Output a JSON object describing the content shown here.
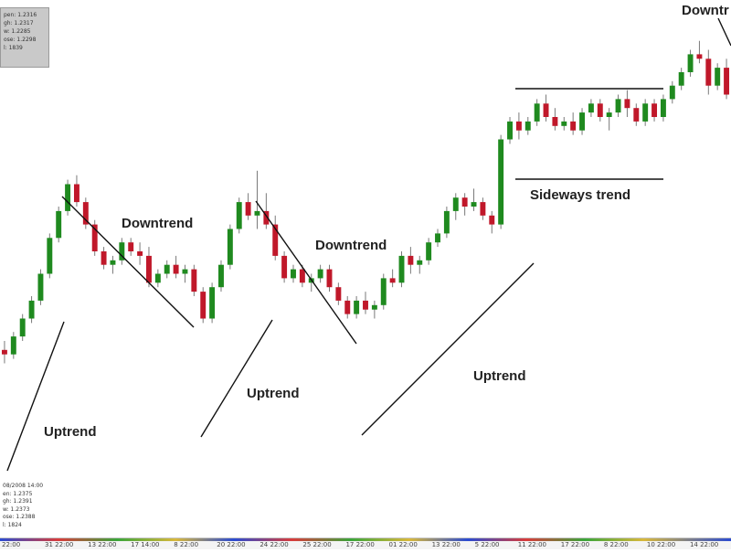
{
  "ohlc_top": {
    "lines": [
      "pen: 1.2316",
      "gh: 1.2317",
      "w: 1.2285",
      "ose: 1.2298",
      "l: 1839"
    ]
  },
  "ohlc_bottom": {
    "lines": [
      "08/2008 14:00",
      "en: 1.2375",
      "gh: 1.2391",
      "w: 1.2373",
      "ose: 1.2388",
      "l: 1824"
    ]
  },
  "annotations": {
    "uptrend_1": "Uptrend",
    "downtrend_1": "Downtrend",
    "uptrend_2": "Uptrend",
    "downtrend_2": "Downtrend",
    "uptrend_3": "Uptrend",
    "sideways": "Sideways trend",
    "downtrend_3": "Downtr"
  },
  "time_axis": {
    "ticks": [
      "22:00",
      "31 22:00",
      "13 22:00",
      "17 14:00",
      "8 22:00",
      "20 22:00",
      "24 22:00",
      "25 22:00",
      "17 22:00",
      "01 22:00",
      "13 22:00",
      "5 22:00",
      "11 22:00",
      "17 22:00",
      "8 22:00",
      "10 22:00",
      "14 22:00"
    ]
  },
  "colors": {
    "up_candle": "#1f8a1f",
    "down_candle": "#c0182a",
    "wick": "#7a7a7a",
    "trendline": "#111111"
  },
  "chart_data": {
    "type": "candlestick",
    "title": "",
    "xlabel": "",
    "ylabel": "",
    "ylim": [
      0,
      100
    ],
    "series": [
      {
        "values": [
          [
            28,
            30,
            25,
            27
          ],
          [
            27,
            32,
            26,
            31
          ],
          [
            31,
            36,
            30,
            35
          ],
          [
            35,
            40,
            34,
            39
          ],
          [
            39,
            46,
            38,
            45
          ],
          [
            45,
            54,
            44,
            53
          ],
          [
            53,
            60,
            52,
            59
          ],
          [
            59,
            66,
            58,
            65
          ],
          [
            65,
            67,
            60,
            61
          ],
          [
            61,
            62,
            55,
            56
          ],
          [
            56,
            57,
            49,
            50
          ],
          [
            50,
            51,
            46,
            47
          ],
          [
            47,
            49,
            45,
            48
          ],
          [
            48,
            53,
            47,
            52
          ],
          [
            52,
            53,
            49,
            50
          ],
          [
            50,
            52,
            47,
            49
          ],
          [
            49,
            51,
            42,
            43
          ],
          [
            43,
            46,
            42,
            45
          ],
          [
            45,
            48,
            44,
            47
          ],
          [
            47,
            49,
            44,
            45
          ],
          [
            45,
            47,
            43,
            46
          ],
          [
            46,
            47,
            40,
            41
          ],
          [
            41,
            42,
            34,
            35
          ],
          [
            35,
            43,
            34,
            42
          ],
          [
            42,
            48,
            41,
            47
          ],
          [
            47,
            56,
            46,
            55
          ],
          [
            55,
            62,
            54,
            61
          ],
          [
            61,
            63,
            57,
            58
          ],
          [
            58,
            68,
            55,
            59
          ],
          [
            59,
            63,
            55,
            56
          ],
          [
            56,
            58,
            48,
            49
          ],
          [
            49,
            50,
            43,
            44
          ],
          [
            44,
            47,
            43,
            46
          ],
          [
            46,
            47,
            42,
            43
          ],
          [
            43,
            45,
            41,
            44
          ],
          [
            44,
            47,
            43,
            46
          ],
          [
            46,
            47,
            41,
            42
          ],
          [
            42,
            43,
            38,
            39
          ],
          [
            39,
            40,
            35,
            36
          ],
          [
            36,
            40,
            35,
            39
          ],
          [
            39,
            41,
            36,
            37
          ],
          [
            37,
            39,
            35,
            38
          ],
          [
            38,
            45,
            37,
            44
          ],
          [
            44,
            46,
            42,
            43
          ],
          [
            43,
            50,
            42,
            49
          ],
          [
            49,
            51,
            45,
            47
          ],
          [
            47,
            49,
            45,
            48
          ],
          [
            48,
            53,
            47,
            52
          ],
          [
            52,
            55,
            51,
            54
          ],
          [
            54,
            60,
            53,
            59
          ],
          [
            59,
            63,
            57,
            62
          ],
          [
            62,
            63,
            58,
            60
          ],
          [
            60,
            64,
            59,
            61
          ],
          [
            61,
            62,
            57,
            58
          ],
          [
            58,
            59,
            54,
            56
          ],
          [
            56,
            76,
            55,
            75
          ],
          [
            75,
            80,
            74,
            79
          ],
          [
            79,
            81,
            75,
            77
          ],
          [
            77,
            80,
            76,
            79
          ],
          [
            79,
            84,
            78,
            83
          ],
          [
            83,
            85,
            79,
            80
          ],
          [
            80,
            82,
            77,
            78
          ],
          [
            78,
            80,
            77,
            79
          ],
          [
            79,
            81,
            76,
            77
          ],
          [
            77,
            82,
            76,
            81
          ],
          [
            81,
            84,
            80,
            83
          ],
          [
            83,
            84,
            79,
            80
          ],
          [
            80,
            82,
            77,
            81
          ],
          [
            81,
            85,
            80,
            84
          ],
          [
            84,
            86,
            80,
            82
          ],
          [
            82,
            83,
            78,
            79
          ],
          [
            79,
            84,
            78,
            83
          ],
          [
            83,
            84,
            79,
            80
          ],
          [
            80,
            85,
            79,
            84
          ],
          [
            84,
            88,
            83,
            87
          ],
          [
            87,
            91,
            86,
            90
          ],
          [
            90,
            95,
            89,
            94
          ],
          [
            94,
            97,
            92,
            93
          ],
          [
            93,
            95,
            85,
            87
          ],
          [
            87,
            92,
            86,
            91
          ],
          [
            91,
            93,
            84,
            85
          ]
        ]
      }
    ],
    "value_format": "[open, high, low, close]",
    "grid": false,
    "legend": "none"
  }
}
